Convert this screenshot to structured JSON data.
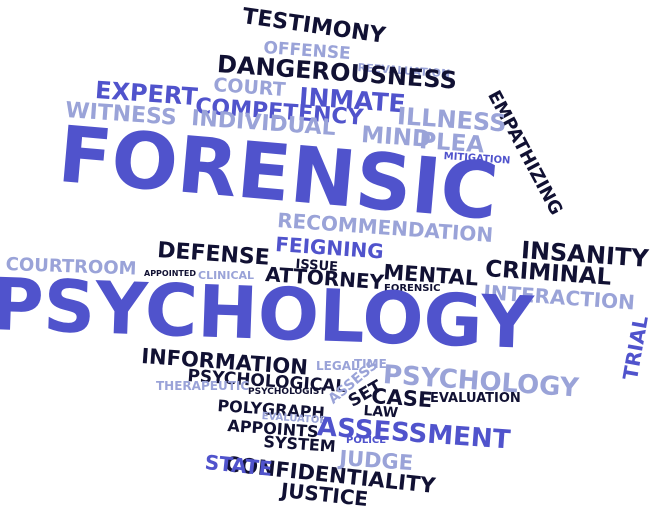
{
  "colors": {
    "dark": "#111133",
    "blue": "#5053cc",
    "light": "#9aa3d8",
    "background": "#ffffff"
  },
  "words": {
    "testimony": "TESTIMONY",
    "offense": "OFFENSE",
    "reevaluation": "REEVALUATION",
    "dangerousness": "DANGEROUSNESS",
    "court": "COURT",
    "expert": "EXPERT",
    "inmate": "INMATE",
    "empathizing": "EMPATHIZING",
    "competency": "COMPETENCY",
    "illness": "ILLNESS",
    "witness": "WITNESS",
    "individual": "INDIVIDUAL",
    "mind": "MIND",
    "plea": "PLEA",
    "mitigation": "MITIGATION",
    "forensic_big": "FORENSIC",
    "recommendation": "RECOMMENDATION",
    "insanity": "INSANITY",
    "feigning": "FEIGNING",
    "defense": "DEFENSE",
    "issue": "ISSUE",
    "criminal": "CRIMINAL",
    "courtroom": "COURTROOM",
    "appointed": "APPOINTED",
    "clinical": "CLINICAL",
    "attorney": "ATTORNEY",
    "mental": "MENTAL",
    "forensic_small": "FORENSIC",
    "interaction": "INTERACTION",
    "psychology_big": "PSYCHOLOGY",
    "trial": "TRIAL",
    "information": "INFORMATION",
    "legal": "LEGAL",
    "time": "TIME",
    "psychology_med": "PSYCHOLOGY",
    "psychological": "PSYCHOLOGICAL",
    "therapeutic": "THERAPEUTIC",
    "psychologist": "PSYCHOLOGIST",
    "assess": "ASSESS",
    "set": "SET",
    "case": "CASE",
    "evaluation": "EVALUATION",
    "polygraph": "POLYGRAPH",
    "law": "LAW",
    "evaluator": "EVALUATOR",
    "appoints": "APPOINTS",
    "assessment": "ASSESSMENT",
    "system": "SYSTEM",
    "police": "POLICE",
    "judge": "JUDGE",
    "confidentiality": "CONFIDENTIALITY",
    "state": "STATE",
    "justice": "JUSTICE"
  }
}
